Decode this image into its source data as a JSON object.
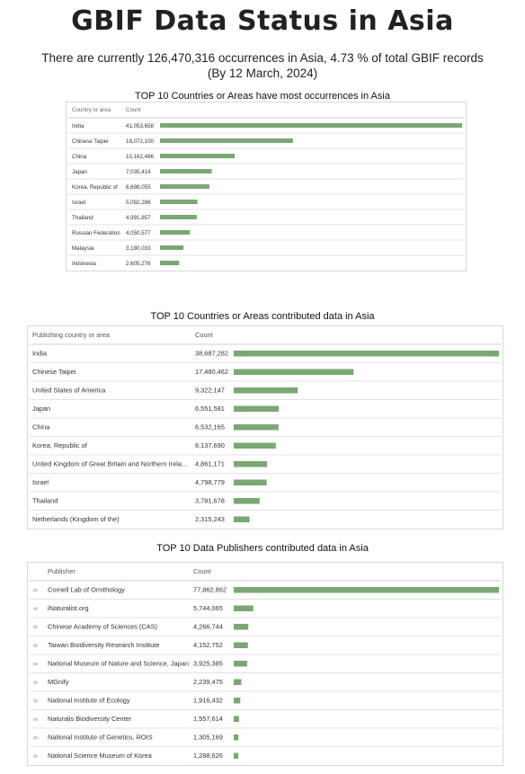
{
  "page": {
    "title": "GBIF Data Status in Asia",
    "subtitle_line1": "There are currently 126,470,316 occurrences in Asia, 4.73 % of total GBIF records",
    "subtitle_line2": "(By 12 March, 2024)"
  },
  "colors": {
    "bar": "#7aa774",
    "grid": "#e3e3e3",
    "border": "#d9d9d9",
    "link_icon": "#999999"
  },
  "chart_data": [
    {
      "type": "bar",
      "title": "TOP 10 Countries or Areas have most occurrences in Asia",
      "column_headers": [
        "Country or area",
        "Count"
      ],
      "categories": [
        "India",
        "Chinese Taipei",
        "China",
        "Japan",
        "Korea, Republic of",
        "Israel",
        "Thailand",
        "Russian Federation",
        "Malaysia",
        "Indonesia"
      ],
      "value_labels": [
        "41,053,658",
        "18,072,100",
        "10,162,486",
        "7,035,414",
        "6,698,055",
        "5,092,286",
        "4,991,857",
        "4,050,577",
        "3,180,033",
        "2,605,276"
      ],
      "values": [
        41053658,
        18072100,
        10162486,
        7035414,
        6698055,
        5092286,
        4991857,
        4050577,
        3180033,
        2605276
      ]
    },
    {
      "type": "bar",
      "title": "TOP 10 Countries or Areas contributed data in Asia",
      "column_headers": [
        "Publishing country or area",
        "Count"
      ],
      "categories": [
        "India",
        "Chinese Taipei",
        "United States of America",
        "Japan",
        "China",
        "Korea, Republic of",
        "United Kingdom of Great Britain and Northern Irela...",
        "Israel",
        "Thailand",
        "Netherlands (Kingdom of the)"
      ],
      "value_labels": [
        "38,687,282",
        "17,480,462",
        "9,322,147",
        "6,551,581",
        "6,532,165",
        "6,137,690",
        "4,861,171",
        "4,798,779",
        "3,781,678",
        "2,315,243"
      ],
      "values": [
        38687282,
        17480462,
        9322147,
        6551581,
        6532165,
        6137690,
        4861171,
        4798779,
        3781678,
        2315243
      ]
    },
    {
      "type": "bar",
      "title": "TOP 10 Data Publishers contributed data in Asia",
      "column_headers": [
        "Publisher",
        "Count"
      ],
      "categories": [
        "Cornell Lab of Ornithology",
        "iNaturalist.org",
        "Chinese Academy of Sciences (CAS)",
        "Taiwan Biodiversity Research Institute",
        "National Museum of Nature and Science, Japan",
        "MGnify",
        "National Institute of Ecology",
        "Naturalis Biodiversity Center",
        "National Institute of Genetics, ROIS",
        "National Science Museum of Korea"
      ],
      "value_labels": [
        "77,862,862",
        "5,744,065",
        "4,266,744",
        "4,152,752",
        "3,925,385",
        "2,239,475",
        "1,916,432",
        "1,557,614",
        "1,305,169",
        "1,288,626"
      ],
      "values": [
        77862862,
        5744065,
        4266744,
        4152752,
        3925385,
        2239475,
        1916432,
        1557614,
        1305169,
        1288626
      ],
      "row_icon": "link-icon"
    }
  ]
}
